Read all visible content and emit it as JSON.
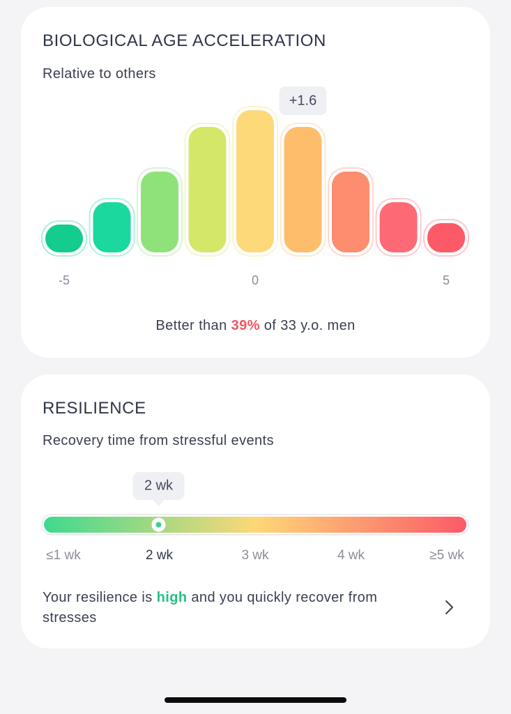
{
  "chart_data": {
    "type": "bar",
    "title": "BIOLOGICAL AGE ACCELERATION",
    "subtitle": "Relative to others",
    "x": [
      -5,
      -3.75,
      -2.5,
      -1.25,
      0,
      1.25,
      2.5,
      3.75,
      5
    ],
    "values": [
      40,
      72,
      116,
      180,
      204,
      180,
      116,
      72,
      42
    ],
    "colors": [
      "#14cc8e",
      "#1bd99e",
      "#8fe27a",
      "#d5e769",
      "#fdd97a",
      "#fdbd6b",
      "#fd8d6f",
      "#fd6a75",
      "#fc5a66"
    ],
    "xlim": [
      -5,
      5
    ],
    "xticks": [
      -5,
      0,
      5
    ],
    "ylim": [
      0,
      210
    ],
    "annotation": {
      "text": "+1.6",
      "x": 1.6
    },
    "note": {
      "before": "Better than",
      "highlight": "39%",
      "after": "of 33 y.o. men"
    }
  },
  "resilience": {
    "title": "RESILIENCE",
    "subtitle": "Recovery time from stressful events",
    "callout": "2 wk",
    "labels": [
      "≤1 wk",
      "2 wk",
      "3 wk",
      "4 wk",
      "≥5 wk"
    ],
    "note": {
      "before": "Your resilience is",
      "highlight": "high",
      "after": "and you quickly recover from stresses"
    }
  }
}
